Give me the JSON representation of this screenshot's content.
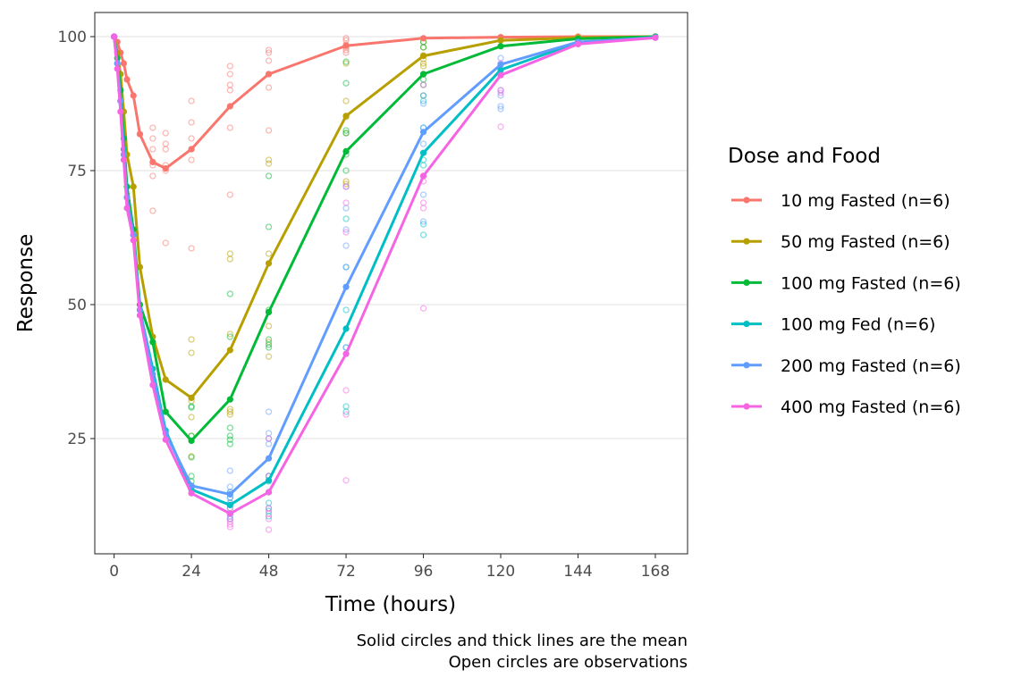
{
  "chart_data": {
    "type": "line",
    "xlabel": "Time (hours)",
    "ylabel": "Response",
    "xlim": [
      -6,
      178
    ],
    "ylim": [
      3.5,
      104.5
    ],
    "xticks": [
      0,
      24,
      48,
      72,
      96,
      120,
      144,
      168
    ],
    "yticks": [
      25,
      50,
      75,
      100
    ],
    "grid": "horizontal",
    "legend_title": "Dose and Food",
    "legend_position": "right",
    "caption": [
      "Solid circles and thick lines are the mean",
      "Open circles are observations"
    ],
    "x": [
      0,
      1,
      2,
      3,
      4,
      6,
      8,
      12,
      16,
      24,
      36,
      48,
      72,
      96,
      120,
      144,
      168
    ],
    "series": [
      {
        "name": "10 mg Fasted (n=6)",
        "color": "#F8766D",
        "mean": [
          100,
          99,
          97,
          95,
          92,
          89,
          81.8,
          76.6,
          75.4,
          79,
          87,
          93,
          98.3,
          99.7,
          99.9,
          100,
          100
        ],
        "observations": {
          "12": [
            83,
            81,
            79,
            76,
            74,
            67.5
          ],
          "16": [
            82,
            80,
            79,
            76,
            75,
            61.5
          ],
          "24": [
            88,
            84,
            81,
            79,
            77,
            60.5
          ],
          "36": [
            94.5,
            93,
            91,
            90,
            83,
            70.5
          ],
          "48": [
            97.5,
            97,
            95.5,
            93,
            90.5,
            82.5
          ],
          "72": [
            99.7,
            99.3,
            98.5,
            98,
            97.5,
            97
          ]
        }
      },
      {
        "name": "50 mg Fasted (n=6)",
        "color": "#B79F00",
        "mean": [
          100,
          97,
          93,
          86,
          78,
          72,
          57,
          44,
          36,
          32.6,
          41.5,
          57.7,
          85.2,
          96.4,
          99.3,
          99.8,
          100
        ],
        "observations": {
          "24": [
            43.5,
            41,
            32,
            29,
            25.5,
            21.7
          ],
          "36": [
            59.5,
            58.5,
            44.5,
            30.5,
            30,
            29.5
          ],
          "48": [
            77,
            76.3,
            59.5,
            46,
            43,
            40.3
          ],
          "72": [
            95,
            88,
            85,
            82,
            73,
            72.5
          ],
          "96": [
            99,
            98,
            96.5,
            95.8,
            95,
            94.5
          ]
        }
      },
      {
        "name": "100 mg Fasted (n=6)",
        "color": "#00BA38",
        "mean": [
          100,
          96,
          90,
          81,
          72,
          64,
          50,
          43,
          30,
          24.6,
          32.3,
          48.6,
          78.6,
          93,
          98.2,
          99.6,
          100
        ],
        "observations": {
          "24": [
            31,
            30.8,
            25.5,
            21.5,
            18,
            17
          ],
          "36": [
            52,
            44,
            27,
            25.5,
            24.8,
            24
          ],
          "48": [
            74,
            64.5,
            49,
            43.5,
            42.5,
            42
          ],
          "72": [
            95.3,
            91.3,
            82.5,
            82,
            78,
            75
          ],
          "96": [
            99,
            98,
            93,
            92,
            91,
            89
          ]
        }
      },
      {
        "name": "100 mg Fed (n=6)",
        "color": "#00BFC4",
        "mean": [
          100,
          95,
          88,
          79,
          70,
          63,
          49,
          38,
          26.5,
          15.5,
          12.6,
          17.2,
          45.5,
          78.3,
          93.8,
          98.9,
          99.9
        ],
        "observations": {
          "36": [
            15,
            14,
            13,
            12,
            11,
            10
          ],
          "48": [
            18,
            17,
            15,
            13,
            11.5,
            10.5
          ],
          "72": [
            66,
            57,
            49,
            42,
            31,
            30
          ],
          "96": [
            88,
            83,
            77,
            76,
            65,
            63
          ]
        }
      },
      {
        "name": "200 mg Fasted (n=6)",
        "color": "#619CFF",
        "mean": [
          100,
          95,
          88,
          78,
          70,
          63,
          49,
          37,
          26,
          16.2,
          14.6,
          21.3,
          53.3,
          82.2,
          94.8,
          99,
          99.8
        ],
        "observations": {
          "36": [
            19,
            16,
            15,
            14,
            13,
            10.5
          ],
          "48": [
            30,
            26,
            25,
            24,
            18,
            12
          ],
          "72": [
            72,
            68,
            64,
            61,
            57,
            42
          ],
          "96": [
            89,
            87.5,
            83,
            80,
            70.5,
            65.5
          ],
          "120": [
            96,
            93,
            90,
            89,
            87,
            86.5
          ]
        }
      },
      {
        "name": "400 mg Fasted (n=6)",
        "color": "#F564E3",
        "mean": [
          100,
          94,
          86,
          77,
          68,
          62,
          48,
          35,
          24.8,
          14.8,
          11,
          15,
          40.8,
          74,
          92.8,
          98.6,
          99.8
        ],
        "observations": {
          "36": [
            12,
            11,
            10,
            9.5,
            9,
            8.5
          ],
          "48": [
            25,
            18,
            12,
            11,
            10,
            8
          ],
          "72": [
            72,
            69,
            63.5,
            34,
            29.5,
            17.2
          ],
          "96": [
            91,
            74,
            73,
            69,
            68,
            49.3
          ],
          "120": [
            95,
            93,
            90,
            89.5,
            83.2
          ]
        }
      }
    ]
  }
}
